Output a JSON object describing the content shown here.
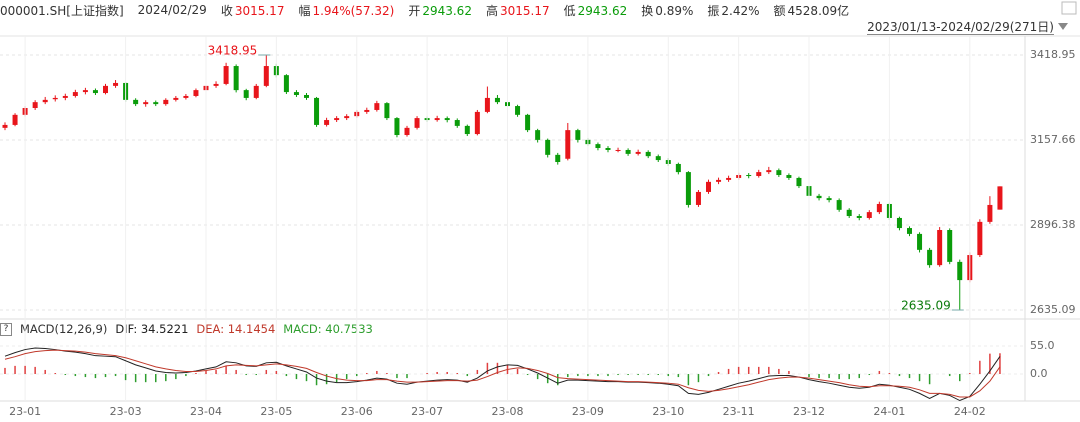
{
  "header": {
    "symbol": "000001.SH[上证指数]",
    "date": "2024/02/29",
    "fields": [
      {
        "label": "收",
        "value": "3015.17",
        "color": "#e8151b"
      },
      {
        "label": "幅",
        "value": "1.94%(57.32)",
        "color": "#e8151b"
      },
      {
        "label": "开",
        "value": "2943.62",
        "color": "#0a9c0a"
      },
      {
        "label": "高",
        "value": "3015.17",
        "color": "#e8151b"
      },
      {
        "label": "低",
        "value": "2943.62",
        "color": "#0a9c0a"
      },
      {
        "label": "换",
        "value": "0.89%",
        "color": "#333333"
      },
      {
        "label": "振",
        "value": "2.42%",
        "color": "#333333"
      },
      {
        "label": "额",
        "value": "4528.09亿",
        "color": "#333333"
      }
    ]
  },
  "chart_data": [
    {
      "type": "candlestick",
      "range_label": "2023/01/13-2024/02/29(271日)",
      "up_color": "#e8151b",
      "down_color": "#0a9c0a",
      "grid": true,
      "ylim": [
        2610.5,
        3471.2
      ],
      "yticks": [
        3418.95,
        3157.66,
        2896.38,
        2635.09
      ],
      "annotations": [
        "3418.95",
        "2635.09"
      ],
      "open": [
        3195,
        3204,
        3235,
        3256,
        3274,
        3283,
        3287,
        3293,
        3305,
        3311,
        3302,
        3324,
        3333,
        3281,
        3268,
        3274,
        3268,
        3281,
        3287,
        3293,
        3311,
        3324,
        3330,
        3385,
        3311,
        3287,
        3324,
        3385,
        3357,
        3305,
        3296,
        3287,
        3204,
        3219,
        3225,
        3231,
        3244,
        3250,
        3271,
        3225,
        3173,
        3195,
        3225,
        3219,
        3225,
        3219,
        3201,
        3176,
        3244,
        3287,
        3274,
        3262,
        3235,
        3188,
        3158,
        3112,
        3100,
        3188,
        3158,
        3145,
        3133,
        3127,
        3127,
        3115,
        3121,
        3108,
        3096,
        3084,
        3059,
        2958,
        2998,
        3029,
        3035,
        3041,
        3050,
        3047,
        3059,
        3065,
        3050,
        3041,
        3016,
        2986,
        2979,
        2973,
        2943,
        2924,
        2918,
        2936,
        2961,
        2918,
        2887,
        2869,
        2820,
        2773,
        2881,
        2783,
        2727,
        2804,
        2906,
        2943.62
      ],
      "high": [
        3212,
        3240,
        3262,
        3280,
        3290,
        3295,
        3300,
        3312,
        3318,
        3316,
        3330,
        3342,
        3336,
        3286,
        3280,
        3279,
        3286,
        3293,
        3299,
        3316,
        3330,
        3338,
        3395,
        3390,
        3315,
        3330,
        3418.95,
        3392,
        3360,
        3311,
        3302,
        3290,
        3226,
        3231,
        3237,
        3250,
        3257,
        3278,
        3274,
        3228,
        3201,
        3231,
        3230,
        3232,
        3230,
        3224,
        3205,
        3250,
        3322,
        3296,
        3280,
        3266,
        3238,
        3192,
        3162,
        3118,
        3210,
        3192,
        3164,
        3150,
        3139,
        3134,
        3132,
        3128,
        3126,
        3113,
        3102,
        3088,
        3062,
        3004,
        3036,
        3042,
        3048,
        3057,
        3056,
        3066,
        3075,
        3070,
        3055,
        3045,
        3020,
        2992,
        2985,
        2978,
        2948,
        2930,
        2942,
        2968,
        2965,
        2922,
        2892,
        2874,
        2826,
        2890,
        2886,
        2790,
        2812,
        2914,
        2985,
        3015.17
      ],
      "low": [
        3188,
        3200,
        3230,
        3250,
        3268,
        3276,
        3280,
        3288,
        3298,
        3296,
        3298,
        3318,
        3275,
        3262,
        3260,
        3262,
        3263,
        3276,
        3282,
        3289,
        3306,
        3318,
        3326,
        3304,
        3280,
        3283,
        3320,
        3350,
        3299,
        3290,
        3281,
        3198,
        3199,
        3213,
        3219,
        3226,
        3238,
        3245,
        3219,
        3166,
        3168,
        3190,
        3213,
        3214,
        3212,
        3195,
        3170,
        3172,
        3240,
        3268,
        3256,
        3229,
        3182,
        3150,
        3104,
        3082,
        3095,
        3150,
        3139,
        3126,
        3120,
        3120,
        3109,
        3110,
        3102,
        3090,
        3078,
        3052,
        2950,
        2952,
        2992,
        3022,
        3029,
        3035,
        3040,
        3042,
        3053,
        3044,
        3035,
        3010,
        2980,
        2972,
        2966,
        2937,
        2918,
        2911,
        2913,
        2930,
        2912,
        2880,
        2862,
        2812,
        2765,
        2768,
        2776,
        2635.09,
        2720,
        2798,
        2900,
        2943.62
      ],
      "close": [
        3204,
        3235,
        3256,
        3274,
        3281,
        3287,
        3293,
        3305,
        3311,
        3302,
        3324,
        3333,
        3281,
        3268,
        3274,
        3268,
        3281,
        3287,
        3293,
        3311,
        3324,
        3330,
        3385,
        3311,
        3287,
        3324,
        3385,
        3357,
        3305,
        3296,
        3287,
        3204,
        3219,
        3225,
        3231,
        3244,
        3250,
        3271,
        3225,
        3173,
        3195,
        3225,
        3219,
        3225,
        3219,
        3201,
        3176,
        3244,
        3287,
        3274,
        3262,
        3235,
        3188,
        3158,
        3112,
        3090,
        3188,
        3158,
        3145,
        3133,
        3127,
        3127,
        3115,
        3121,
        3108,
        3096,
        3084,
        3059,
        2958,
        2998,
        3029,
        3035,
        3041,
        3050,
        3047,
        3059,
        3065,
        3050,
        3041,
        3016,
        2986,
        2979,
        2973,
        2943,
        2924,
        2918,
        2936,
        2961,
        2918,
        2887,
        2869,
        2820,
        2773,
        2881,
        2783,
        2727,
        2804,
        2906,
        2958,
        3015.17
      ]
    },
    {
      "type": "macd",
      "title": "MACD(12,26,9)",
      "help": "?",
      "ylim": [
        -51,
        70.7
      ],
      "yticks": [
        {
          "value": 55,
          "label": "55.0"
        },
        {
          "value": 0,
          "label": "0.0"
        }
      ],
      "xticks": [
        {
          "value": 2,
          "label": "23-01"
        },
        {
          "value": 12,
          "label": "23-03"
        },
        {
          "value": 20,
          "label": "23-04"
        },
        {
          "value": 27,
          "label": "23-05"
        },
        {
          "value": 35,
          "label": "23-06"
        },
        {
          "value": 42,
          "label": "23-07"
        },
        {
          "value": 50,
          "label": "23-08"
        },
        {
          "value": 58,
          "label": "23-09"
        },
        {
          "value": 66,
          "label": "23-10"
        },
        {
          "value": 73,
          "label": "23-11"
        },
        {
          "value": 80,
          "label": "23-12"
        },
        {
          "value": 88,
          "label": "24-01"
        },
        {
          "value": 96,
          "label": "24-02"
        }
      ],
      "series": [
        {
          "label": "DIF: 34.5221",
          "color": "#222222",
          "kind": "line",
          "values": [
            35,
            42,
            48,
            51,
            50,
            48,
            45,
            43,
            40,
            36,
            35,
            34,
            26,
            18,
            12,
            6,
            3,
            2,
            3,
            6,
            10,
            14,
            24,
            22,
            16,
            15,
            22,
            23,
            16,
            10,
            4,
            -8,
            -14,
            -17,
            -17,
            -15,
            -12,
            -8,
            -10,
            -18,
            -20,
            -16,
            -14,
            -12,
            -11,
            -12,
            -16,
            -8,
            6,
            14,
            18,
            17,
            10,
            2,
            -8,
            -18,
            -12,
            -12,
            -13,
            -14,
            -15,
            -15,
            -16,
            -16,
            -17,
            -18,
            -20,
            -23,
            -38,
            -40,
            -36,
            -30,
            -24,
            -18,
            -14,
            -9,
            -4,
            -3,
            -3,
            -6,
            -11,
            -15,
            -18,
            -22,
            -26,
            -28,
            -26,
            -20,
            -22,
            -26,
            -30,
            -38,
            -48,
            -38,
            -42,
            -52,
            -44,
            -20,
            6,
            34.5221
          ]
        },
        {
          "label": "DEA: 14.1454",
          "color": "#c0392b",
          "kind": "line",
          "values": [
            29,
            34,
            40,
            44,
            46,
            47,
            46,
            45,
            43,
            40,
            38,
            36,
            32,
            26,
            20,
            14,
            10,
            7,
            5,
            5,
            7,
            10,
            16,
            18,
            17,
            16,
            18,
            20,
            18,
            15,
            11,
            3,
            -4,
            -9,
            -12,
            -13,
            -13,
            -11,
            -11,
            -14,
            -16,
            -16,
            -15,
            -14,
            -13,
            -13,
            -14,
            -12,
            -5,
            3,
            9,
            12,
            11,
            7,
            1,
            -7,
            -9,
            -10,
            -11,
            -12,
            -13,
            -14,
            -15,
            -15,
            -16,
            -17,
            -18,
            -20,
            -27,
            -32,
            -34,
            -32,
            -29,
            -25,
            -21,
            -16,
            -11,
            -8,
            -6,
            -6,
            -8,
            -11,
            -14,
            -17,
            -21,
            -24,
            -25,
            -23,
            -23,
            -24,
            -26,
            -31,
            -38,
            -38,
            -40,
            -45,
            -45,
            -33,
            -14,
            14.1454
          ]
        },
        {
          "label": "MACD: 40.7533",
          "color": "#2e9e2e",
          "up_color": "#e04040",
          "kind": "bar",
          "values": [
            12,
            16,
            16,
            14,
            8,
            2,
            -2,
            -4,
            -6,
            -8,
            -6,
            -4,
            -12,
            -16,
            -16,
            -16,
            -14,
            -10,
            -4,
            2,
            6,
            8,
            16,
            8,
            -2,
            -2,
            8,
            6,
            -4,
            -10,
            -14,
            -22,
            -20,
            -16,
            -10,
            -4,
            2,
            6,
            2,
            -8,
            -8,
            0,
            2,
            4,
            4,
            2,
            -4,
            8,
            22,
            22,
            18,
            10,
            -2,
            -10,
            -18,
            -22,
            -6,
            -4,
            -4,
            -4,
            -4,
            -2,
            -2,
            -2,
            -2,
            -2,
            -4,
            -6,
            -22,
            -16,
            -4,
            4,
            10,
            14,
            14,
            14,
            14,
            10,
            6,
            0,
            -6,
            -8,
            -8,
            -10,
            -10,
            -8,
            -2,
            6,
            2,
            -4,
            -8,
            -14,
            -20,
            0,
            -4,
            -14,
            2,
            26,
            40,
            40.7533
          ]
        }
      ]
    }
  ]
}
